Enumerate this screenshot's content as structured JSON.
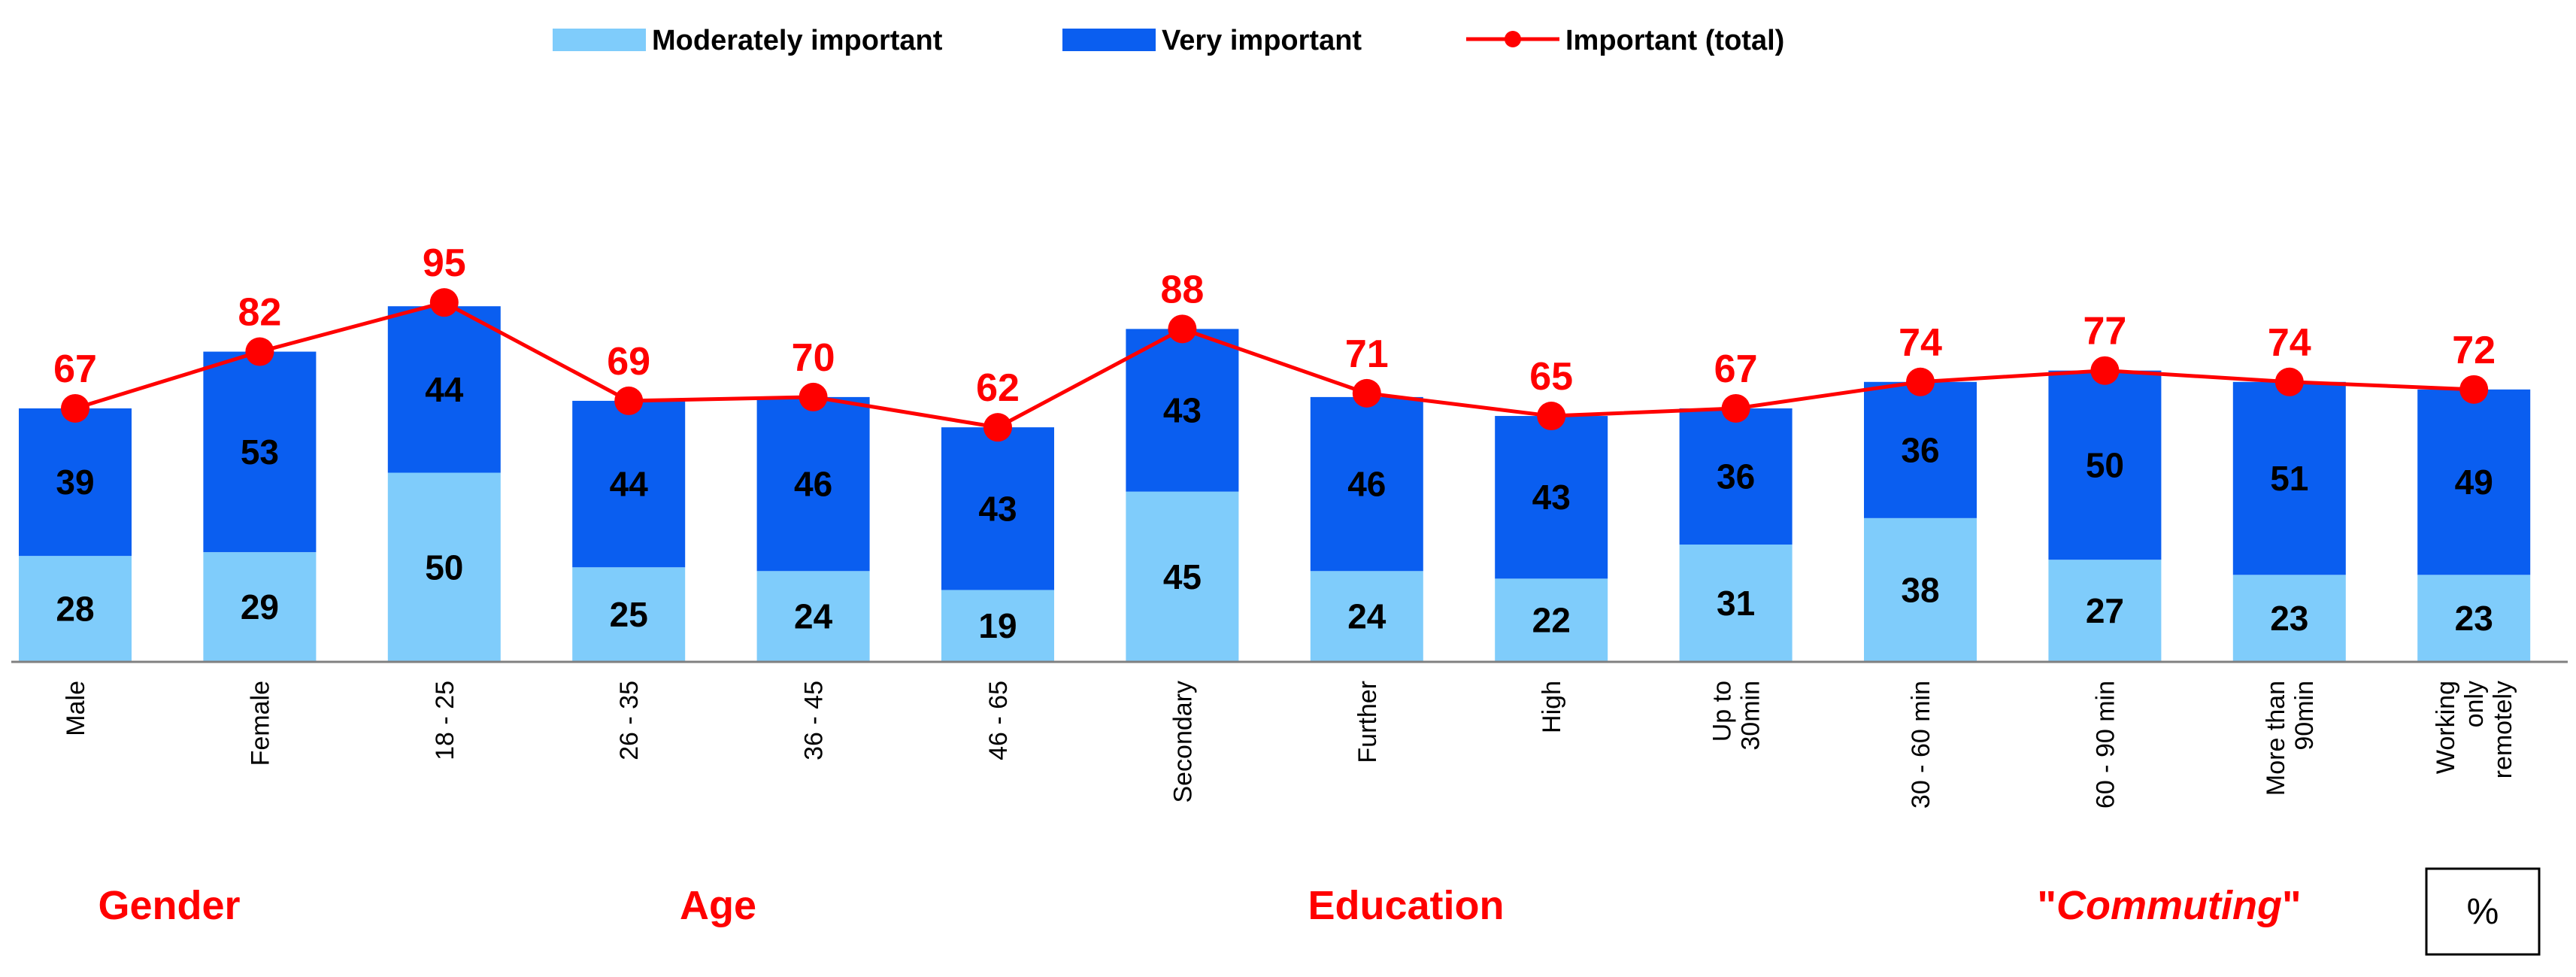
{
  "chart_data": {
    "type": "bar",
    "stacked": true,
    "categories": [
      [
        "Male"
      ],
      [
        "Female"
      ],
      [
        "18 - 25"
      ],
      [
        "26 - 35"
      ],
      [
        "36 - 45"
      ],
      [
        "46 - 65"
      ],
      [
        "Secondary"
      ],
      [
        "Further"
      ],
      [
        "High"
      ],
      [
        "Up to",
        "30min"
      ],
      [
        "30 - 60 min"
      ],
      [
        "60 - 90 min"
      ],
      [
        "More than",
        "90min"
      ],
      [
        "Working",
        "only",
        "remotely"
      ]
    ],
    "series": [
      {
        "name": "Moderately important",
        "type": "bar",
        "color": "#7fccfb",
        "values": [
          28,
          29,
          50,
          25,
          24,
          19,
          45,
          24,
          22,
          31,
          38,
          27,
          23,
          23
        ]
      },
      {
        "name": "Very important",
        "type": "bar",
        "color": "#0a5ef0",
        "values": [
          39,
          53,
          44,
          44,
          46,
          43,
          43,
          46,
          43,
          36,
          36,
          50,
          51,
          49
        ]
      },
      {
        "name": "Important (total)",
        "type": "line",
        "color": "#ff0000",
        "values": [
          67,
          82,
          95,
          69,
          70,
          62,
          88,
          71,
          65,
          67,
          74,
          77,
          74,
          72
        ]
      }
    ],
    "groups": [
      {
        "label": "Gender",
        "italic": false,
        "quoted": false
      },
      {
        "label": "Age",
        "italic": false,
        "quoted": false
      },
      {
        "label": "Education",
        "italic": false,
        "quoted": false
      },
      {
        "label": "Commuting",
        "italic": true,
        "quoted": true
      }
    ],
    "unit_label": "%",
    "legend_position": "top",
    "ylim": [
      0,
      100
    ],
    "grid": false
  }
}
